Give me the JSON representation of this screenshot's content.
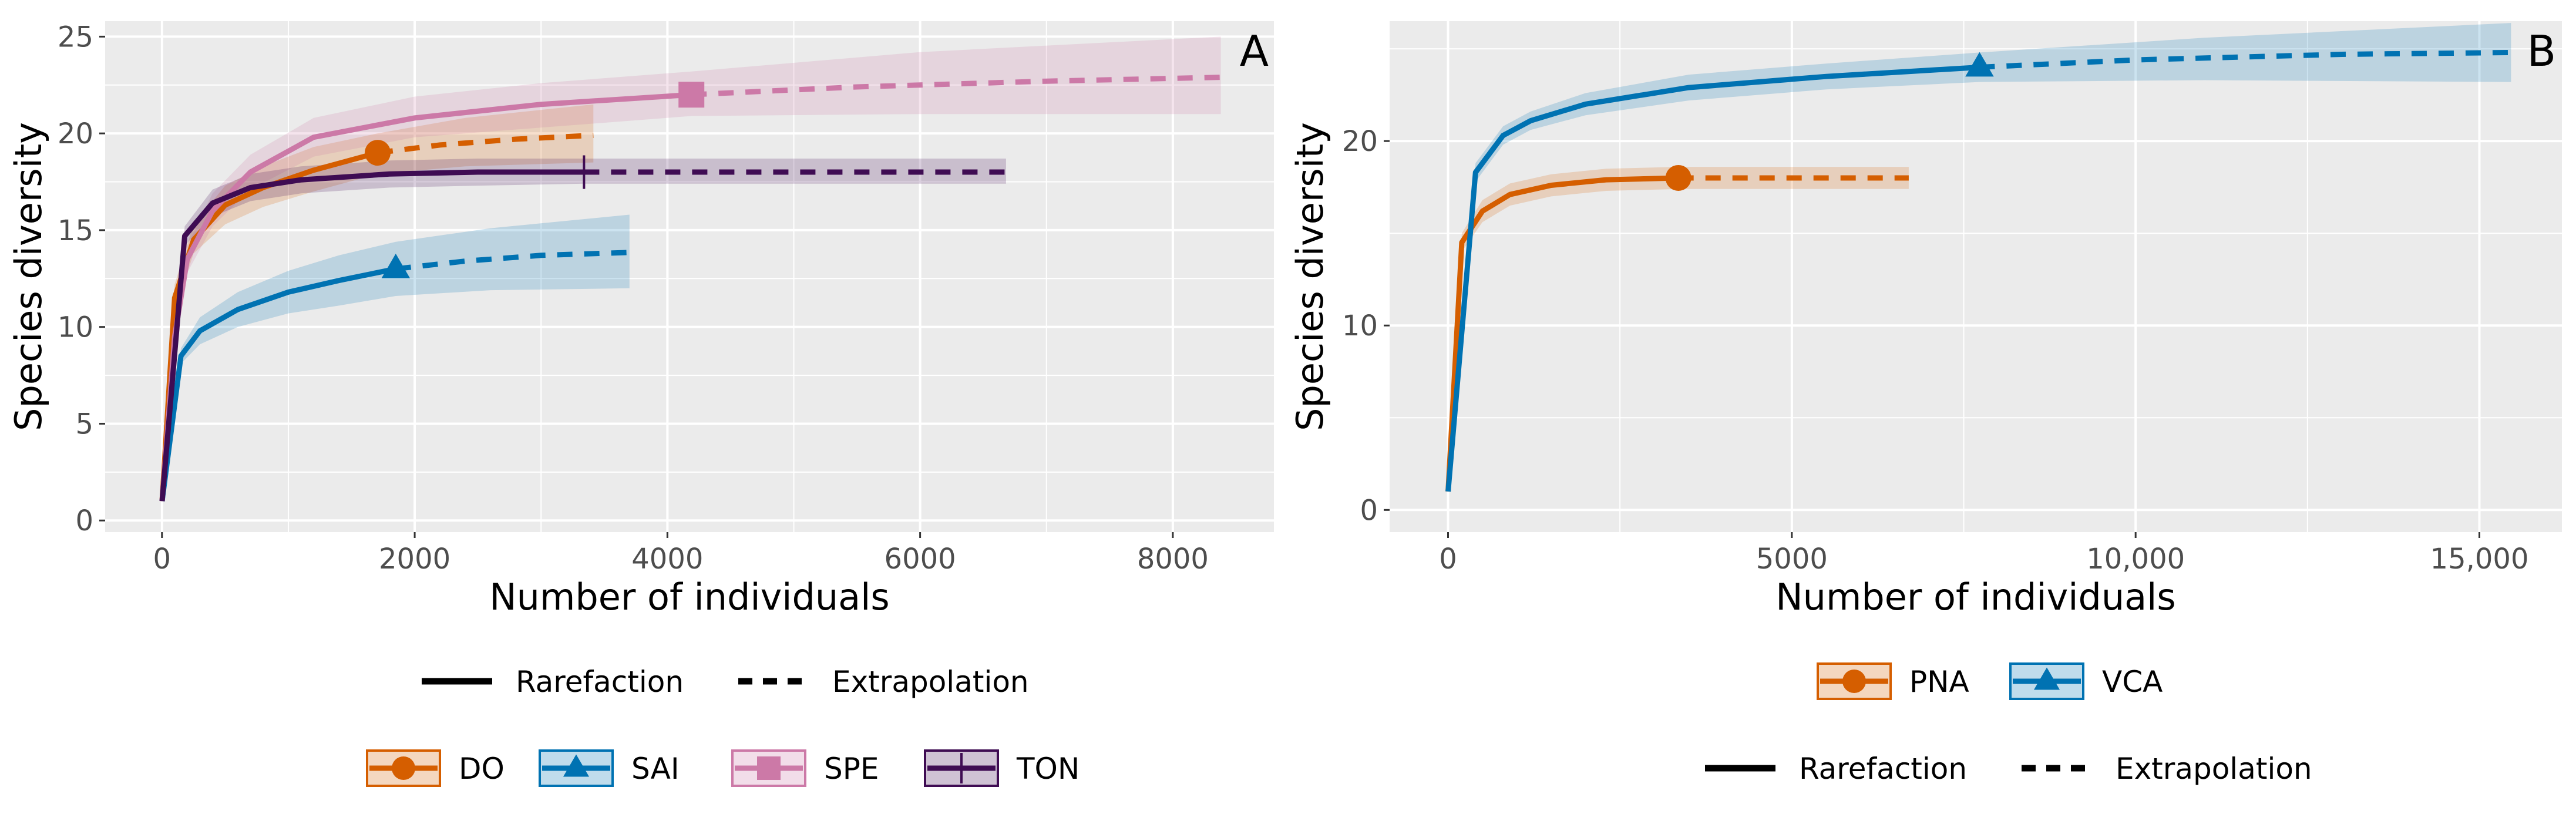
{
  "chart_data": [
    {
      "type": "line",
      "panel_label": "A",
      "xlabel": "Number of individuals",
      "ylabel": "Species diversity",
      "xlim": [
        -450,
        8800
      ],
      "ylim": [
        -0.6,
        25.8
      ],
      "x_ticks": [
        0,
        2000,
        4000,
        6000,
        8000
      ],
      "x_tick_labels": [
        "0",
        "2000",
        "4000",
        "6000",
        "8000"
      ],
      "y_ticks": [
        0,
        5,
        10,
        15,
        20,
        25
      ],
      "y_tick_labels": [
        "0",
        "5",
        "10",
        "15",
        "20",
        "25"
      ],
      "grid": true,
      "linetype_legend": [
        "Rarefaction",
        "Extrapolation"
      ],
      "series": [
        {
          "name": "DO",
          "color": "#D55E00",
          "marker": "circle",
          "rarefaction": [
            [
              1,
              1
            ],
            [
              100,
              11.5
            ],
            [
              250,
              14.5
            ],
            [
              500,
              16.3
            ],
            [
              800,
              17.2
            ],
            [
              1200,
              18.1
            ],
            [
              1707,
              19
            ]
          ],
          "extrapolation": [
            [
              1707,
              19
            ],
            [
              2200,
              19.4
            ],
            [
              2800,
              19.7
            ],
            [
              3414,
              19.9
            ]
          ],
          "ci_lower": [
            [
              1,
              1
            ],
            [
              100,
              10.8
            ],
            [
              250,
              13.8
            ],
            [
              500,
              15.3
            ],
            [
              800,
              16.2
            ],
            [
              1200,
              17.0
            ],
            [
              1707,
              17.9
            ],
            [
              2400,
              18.3
            ],
            [
              3414,
              18.5
            ]
          ],
          "ci_upper": [
            [
              1,
              1
            ],
            [
              100,
              12.2
            ],
            [
              250,
              15.3
            ],
            [
              500,
              17.3
            ],
            [
              800,
              18.3
            ],
            [
              1200,
              19.3
            ],
            [
              1707,
              20.0
            ],
            [
              2400,
              20.8
            ],
            [
              3414,
              21.5
            ]
          ],
          "observed": [
            1707,
            19
          ]
        },
        {
          "name": "SAI",
          "color": "#0072B2",
          "marker": "triangle",
          "rarefaction": [
            [
              1,
              1
            ],
            [
              150,
              8.5
            ],
            [
              300,
              9.8
            ],
            [
              600,
              10.9
            ],
            [
              1000,
              11.8
            ],
            [
              1400,
              12.4
            ],
            [
              1850,
              13
            ]
          ],
          "extrapolation": [
            [
              1850,
              13
            ],
            [
              2400,
              13.4
            ],
            [
              3000,
              13.7
            ],
            [
              3700,
              13.85
            ]
          ],
          "ci_lower": [
            [
              1,
              1
            ],
            [
              150,
              8.1
            ],
            [
              300,
              9.1
            ],
            [
              600,
              10.0
            ],
            [
              1000,
              10.7
            ],
            [
              1400,
              11.1
            ],
            [
              1850,
              11.6
            ],
            [
              2600,
              11.9
            ],
            [
              3700,
              12.0
            ]
          ],
          "ci_upper": [
            [
              1,
              1
            ],
            [
              150,
              8.9
            ],
            [
              300,
              10.5
            ],
            [
              600,
              11.8
            ],
            [
              1000,
              12.9
            ],
            [
              1400,
              13.7
            ],
            [
              1850,
              14.4
            ],
            [
              2600,
              15.1
            ],
            [
              3700,
              15.8
            ]
          ],
          "observed": [
            1850,
            13
          ]
        },
        {
          "name": "SPE",
          "color": "#CC79A7",
          "marker": "square",
          "rarefaction": [
            [
              1,
              1
            ],
            [
              100,
              9.5
            ],
            [
              200,
              13.5
            ],
            [
              400,
              16
            ],
            [
              700,
              18
            ],
            [
              1200,
              19.8
            ],
            [
              2000,
              20.8
            ],
            [
              3000,
              21.5
            ],
            [
              4190,
              22
            ]
          ],
          "extrapolation": [
            [
              4190,
              22
            ],
            [
              5500,
              22.4
            ],
            [
              7000,
              22.7
            ],
            [
              8380,
              22.9
            ]
          ],
          "ci_lower": [
            [
              1,
              1
            ],
            [
              100,
              9.0
            ],
            [
              200,
              12.8
            ],
            [
              400,
              15.2
            ],
            [
              700,
              17.1
            ],
            [
              1200,
              18.8
            ],
            [
              2000,
              19.8
            ],
            [
              3000,
              20.3
            ],
            [
              4190,
              20.9
            ],
            [
              6000,
              21.0
            ],
            [
              8380,
              21.0
            ]
          ],
          "ci_upper": [
            [
              1,
              1
            ],
            [
              100,
              10.0
            ],
            [
              200,
              14.2
            ],
            [
              400,
              16.9
            ],
            [
              700,
              18.9
            ],
            [
              1200,
              20.8
            ],
            [
              2000,
              21.9
            ],
            [
              3000,
              22.6
            ],
            [
              4190,
              23.2
            ],
            [
              6000,
              24.2
            ],
            [
              8380,
              25.0
            ]
          ],
          "observed": [
            4190,
            22
          ]
        },
        {
          "name": "TON",
          "color": "#3F0C53",
          "marker": "vline",
          "rarefaction": [
            [
              1,
              1
            ],
            [
              180,
              14.7
            ],
            [
              400,
              16.4
            ],
            [
              700,
              17.2
            ],
            [
              1100,
              17.6
            ],
            [
              1800,
              17.9
            ],
            [
              2500,
              18
            ],
            [
              3340,
              18
            ]
          ],
          "extrapolation": [
            [
              3340,
              18
            ],
            [
              4500,
              18
            ],
            [
              5600,
              18
            ],
            [
              6680,
              18
            ]
          ],
          "ci_lower": [
            [
              1,
              1
            ],
            [
              180,
              14.2
            ],
            [
              400,
              15.7
            ],
            [
              700,
              16.5
            ],
            [
              1100,
              16.9
            ],
            [
              1800,
              17.2
            ],
            [
              2500,
              17.3
            ],
            [
              3340,
              17.4
            ],
            [
              6680,
              17.4
            ]
          ],
          "ci_upper": [
            [
              1,
              1
            ],
            [
              180,
              15.2
            ],
            [
              400,
              17.1
            ],
            [
              700,
              17.9
            ],
            [
              1100,
              18.3
            ],
            [
              1800,
              18.6
            ],
            [
              2500,
              18.7
            ],
            [
              3340,
              18.7
            ],
            [
              6680,
              18.7
            ]
          ],
          "observed": [
            3340,
            18
          ]
        }
      ]
    },
    {
      "type": "line",
      "panel_label": "B",
      "xlabel": "Number of individuals",
      "ylabel": "Species diversity",
      "xlim": [
        -850,
        16200
      ],
      "ylim": [
        -1.2,
        26.5
      ],
      "x_ticks": [
        0,
        5000,
        10000,
        15000
      ],
      "x_tick_labels": [
        "0",
        "5000",
        "10,000",
        "15,000"
      ],
      "y_ticks": [
        0,
        10,
        20
      ],
      "y_tick_labels": [
        "0",
        "10",
        "20"
      ],
      "grid": true,
      "linetype_legend": [
        "Rarefaction",
        "Extrapolation"
      ],
      "series": [
        {
          "name": "PNA",
          "color": "#D55E00",
          "marker": "circle",
          "rarefaction": [
            [
              1,
              1
            ],
            [
              200,
              14.5
            ],
            [
              500,
              16.2
            ],
            [
              900,
              17.1
            ],
            [
              1500,
              17.6
            ],
            [
              2300,
              17.9
            ],
            [
              3350,
              18
            ]
          ],
          "extrapolation": [
            [
              3350,
              18
            ],
            [
              4500,
              18
            ],
            [
              5600,
              18
            ],
            [
              6700,
              18
            ]
          ],
          "ci_lower": [
            [
              1,
              1
            ],
            [
              200,
              14.0
            ],
            [
              500,
              15.6
            ],
            [
              900,
              16.5
            ],
            [
              1500,
              17.0
            ],
            [
              2300,
              17.3
            ],
            [
              3350,
              17.4
            ],
            [
              6700,
              17.4
            ]
          ],
          "ci_upper": [
            [
              1,
              1
            ],
            [
              200,
              15.0
            ],
            [
              500,
              16.8
            ],
            [
              900,
              17.7
            ],
            [
              1500,
              18.2
            ],
            [
              2300,
              18.5
            ],
            [
              3350,
              18.6
            ],
            [
              6700,
              18.6
            ]
          ],
          "observed": [
            3350,
            18
          ]
        },
        {
          "name": "VCA",
          "color": "#0072B2",
          "marker": "triangle",
          "rarefaction": [
            [
              1,
              1
            ],
            [
              400,
              18.3
            ],
            [
              800,
              20.3
            ],
            [
              1200,
              21.1
            ],
            [
              2000,
              22
            ],
            [
              3500,
              22.9
            ],
            [
              5500,
              23.5
            ],
            [
              7730,
              24
            ]
          ],
          "extrapolation": [
            [
              7730,
              24
            ],
            [
              10000,
              24.4
            ],
            [
              13000,
              24.7
            ],
            [
              15460,
              24.8
            ]
          ],
          "ci_lower": [
            [
              1,
              1
            ],
            [
              400,
              17.8
            ],
            [
              800,
              19.8
            ],
            [
              1200,
              20.6
            ],
            [
              2000,
              21.4
            ],
            [
              3500,
              22.2
            ],
            [
              5500,
              22.8
            ],
            [
              7730,
              23.2
            ],
            [
              11000,
              23.3
            ],
            [
              15460,
              23.2
            ]
          ],
          "ci_upper": [
            [
              1,
              1
            ],
            [
              400,
              18.8
            ],
            [
              800,
              20.8
            ],
            [
              1200,
              21.6
            ],
            [
              2000,
              22.6
            ],
            [
              3500,
              23.6
            ],
            [
              5500,
              24.2
            ],
            [
              7730,
              24.8
            ],
            [
              11000,
              25.6
            ],
            [
              15460,
              26.4
            ]
          ],
          "observed": [
            7730,
            24
          ]
        }
      ]
    }
  ]
}
